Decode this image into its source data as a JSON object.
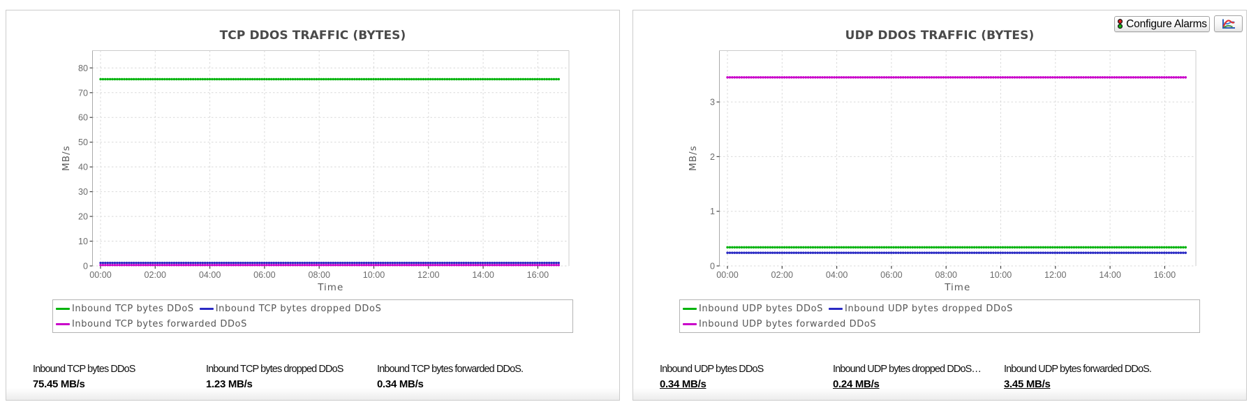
{
  "toolbar": {
    "configure_alarms_label": "Configure Alarms"
  },
  "chart_data": [
    {
      "type": "line",
      "title": "TCP DDOS TRAFFIC (BYTES)",
      "xlabel": "Time",
      "ylabel": "MB/s",
      "x_tick_labels": [
        "00:00",
        "02:00",
        "04:00",
        "06:00",
        "08:00",
        "10:00",
        "12:00",
        "14:00",
        "16:00"
      ],
      "x_tick_hours": [
        0,
        2,
        4,
        6,
        8,
        10,
        12,
        14,
        16
      ],
      "xlim_hours": [
        0,
        17.15
      ],
      "data_span_hours": [
        0,
        16.78
      ],
      "y_ticks": [
        0,
        10,
        20,
        30,
        40,
        50,
        60,
        70,
        80
      ],
      "ylim": [
        0,
        87
      ],
      "grid": true,
      "legend_position": "bottom",
      "series": [
        {
          "name": "Inbound TCP bytes DDoS",
          "color": "#00b30b",
          "value": 75.45
        },
        {
          "name": "Inbound TCP bytes dropped DDoS",
          "color": "#2a2ac4",
          "value": 1.23
        },
        {
          "name": "Inbound TCP bytes forwarded DDoS",
          "color": "#c900c9",
          "value": 0.34
        }
      ]
    },
    {
      "type": "line",
      "title": "UDP DDOS TRAFFIC (BYTES)",
      "xlabel": "Time",
      "ylabel": "MB/s",
      "x_tick_labels": [
        "00:00",
        "02:00",
        "04:00",
        "06:00",
        "08:00",
        "10:00",
        "12:00",
        "14:00",
        "16:00"
      ],
      "x_tick_hours": [
        0,
        2,
        4,
        6,
        8,
        10,
        12,
        14,
        16
      ],
      "xlim_hours": [
        0,
        17.15
      ],
      "data_span_hours": [
        0,
        16.78
      ],
      "y_ticks": [
        0,
        1,
        2,
        3
      ],
      "ylim": [
        0,
        3.94
      ],
      "grid": true,
      "legend_position": "bottom",
      "series": [
        {
          "name": "Inbound UDP bytes DDoS",
          "color": "#00b30b",
          "value": 0.34
        },
        {
          "name": "Inbound UDP bytes dropped DDoS",
          "color": "#2a2ac4",
          "value": 0.24
        },
        {
          "name": "Inbound UDP bytes forwarded DDoS",
          "color": "#c900c9",
          "value": 3.45
        }
      ]
    }
  ],
  "panels": [
    {
      "stats": [
        {
          "label": "Inbound TCP bytes DDoS",
          "value": "75.45 MB/s",
          "underlined": false
        },
        {
          "label": "Inbound TCP bytes dropped DDoS",
          "value": "1.23 MB/s",
          "underlined": false
        },
        {
          "label": "Inbound TCP bytes forwarded DDoS.",
          "value": "0.34 MB/s",
          "underlined": false
        }
      ]
    },
    {
      "stats": [
        {
          "label": "Inbound UDP bytes DDoS",
          "value": "0.34 MB/s",
          "underlined": true
        },
        {
          "label": "Inbound UDP bytes dropped DDoS…",
          "value": "0.24 MB/s",
          "underlined": true
        },
        {
          "label": "Inbound UDP bytes forwarded DDoS.",
          "value": "3.45 MB/s",
          "underlined": true
        }
      ]
    }
  ]
}
